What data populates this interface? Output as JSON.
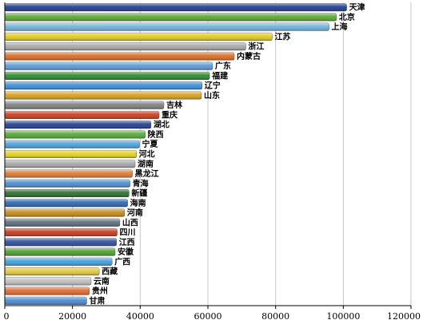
{
  "chart_data": {
    "type": "bar",
    "orientation": "horizontal",
    "title": "",
    "xlabel": "",
    "ylabel": "",
    "xlim": [
      0,
      120000
    ],
    "x_ticks": [
      {
        "value": 0,
        "label": "0"
      },
      {
        "value": 20000,
        "label": "20000"
      },
      {
        "value": 40000,
        "label": "40000"
      },
      {
        "value": 60000,
        "label": "60000"
      },
      {
        "value": 80000,
        "label": "80000"
      },
      {
        "value": 100000,
        "label": "100000"
      },
      {
        "value": 120000,
        "label": "120000"
      }
    ],
    "grid": true,
    "legend": "none",
    "categories": [
      "天津",
      "北京",
      "上海",
      "江苏",
      "浙江",
      "内蒙古",
      "广东",
      "福建",
      "辽宁",
      "山东",
      "吉林",
      "重庆",
      "湖北",
      "陕西",
      "宁夏",
      "河北",
      "湖南",
      "黑龙江",
      "青海",
      "新疆",
      "海南",
      "河南",
      "山西",
      "四川",
      "江西",
      "安徽",
      "广西",
      "西藏",
      "云南",
      "贵州",
      "甘肃"
    ],
    "values": [
      101000,
      98000,
      95800,
      79000,
      71200,
      67800,
      61400,
      60500,
      58300,
      58100,
      47000,
      45600,
      43200,
      41500,
      39800,
      38900,
      38500,
      37700,
      37000,
      36700,
      36300,
      35400,
      34000,
      33200,
      33000,
      32600,
      31700,
      27900,
      25500,
      25000,
      24200
    ],
    "colors": [
      "#1f3f8f",
      "#5aa82f",
      "#6fb3de",
      "#e2cc1f",
      "#a9a9a9",
      "#d96d27",
      "#5b9bd5",
      "#2f8a2f",
      "#3c8fd8",
      "#d9a118",
      "#7f7f7f",
      "#cf3e1f",
      "#24408f",
      "#58a83a",
      "#4ea3d9",
      "#e5d21f",
      "#a8a8a8",
      "#e07a2f",
      "#4a90d0",
      "#2f6f2f",
      "#2f68b0",
      "#c28a1d",
      "#5f6f7f",
      "#c83a1f",
      "#2f4f9f",
      "#4f9f2f",
      "#3fa0e0",
      "#e2c83f",
      "#bfbfbf",
      "#e06a2f",
      "#4f8ad0"
    ]
  }
}
